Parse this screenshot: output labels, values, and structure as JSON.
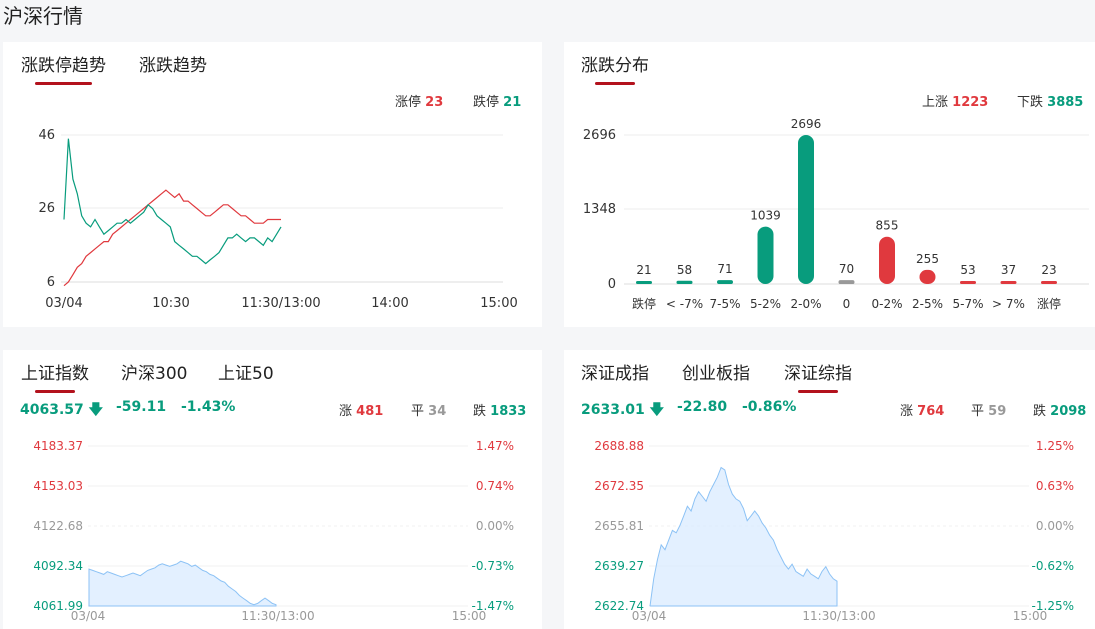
{
  "page_title": "沪深行情",
  "trend": {
    "tabs": [
      "涨跌停趋势",
      "涨跌趋势"
    ],
    "limit_up_label": "涨停",
    "limit_up": "23",
    "limit_down_label": "跌停",
    "limit_down": "21",
    "y_ticks": [
      "46",
      "26",
      "6"
    ],
    "x_ticks": [
      "03/04",
      "10:30",
      "11:30/13:00",
      "14:00",
      "15:00"
    ]
  },
  "dist": {
    "tab": "涨跌分布",
    "up_label": "上涨",
    "up": "1223",
    "down_label": "下跌",
    "down": "3885",
    "y_ticks": [
      "2696",
      "1348",
      "0"
    ]
  },
  "sh": {
    "tabs": [
      "上证指数",
      "沪深300",
      "上证50"
    ],
    "price": "4063.57",
    "arrow": "🡇",
    "change": "-59.11",
    "pct": "-1.43%",
    "up_label": "涨",
    "up": "481",
    "flat_label": "平",
    "flat": "34",
    "down_label": "跌",
    "down": "1833",
    "left_ticks": [
      "4183.37",
      "4153.03",
      "4122.68",
      "4092.34",
      "4061.99"
    ],
    "right_ticks": [
      "1.47%",
      "0.74%",
      "0.00%",
      "-0.73%",
      "-1.47%"
    ],
    "x_ticks": [
      "03/04",
      "11:30/13:00",
      "15:00"
    ]
  },
  "sz": {
    "tabs": [
      "深证成指",
      "创业板指",
      "深证综指"
    ],
    "price": "2633.01",
    "arrow": "🡇",
    "change": "-22.80",
    "pct": "-0.86%",
    "up_label": "涨",
    "up": "764",
    "flat_label": "平",
    "flat": "59",
    "down_label": "跌",
    "down": "2098",
    "left_ticks": [
      "2688.88",
      "2672.35",
      "2655.81",
      "2639.27",
      "2622.74"
    ],
    "right_ticks": [
      "1.25%",
      "0.63%",
      "0.00%",
      "-0.62%",
      "-1.25%"
    ],
    "x_ticks": [
      "03/04",
      "11:30/13:00",
      "15:00"
    ]
  },
  "chart_data": [
    {
      "type": "line",
      "series": [
        {
          "name": "涨停",
          "color": "#e0393e",
          "values": [
            5,
            6,
            8,
            10,
            11,
            13,
            14,
            15,
            16,
            17,
            17,
            19,
            20,
            21,
            22,
            23,
            24,
            25,
            26,
            27,
            28,
            29,
            30,
            31,
            30,
            29,
            30,
            28,
            28,
            27,
            26,
            25,
            24,
            24,
            25,
            26,
            27,
            27,
            26,
            25,
            24,
            24,
            23,
            22,
            22,
            22,
            23,
            23,
            23,
            23
          ]
        },
        {
          "name": "跌停",
          "color": "#089c7d",
          "values": [
            23,
            45,
            34,
            30,
            24,
            22,
            21,
            23,
            21,
            19,
            20,
            21,
            22,
            22,
            23,
            22,
            23,
            24,
            25,
            27,
            26,
            24,
            23,
            22,
            21,
            17,
            16,
            15,
            14,
            13,
            13,
            12,
            11,
            12,
            13,
            14,
            16,
            18,
            18,
            19,
            18,
            17,
            18,
            18,
            17,
            16,
            18,
            17,
            19,
            21
          ]
        }
      ],
      "ylim": [
        6,
        46
      ]
    },
    {
      "type": "bar",
      "categories": [
        "跌停",
        "< -7%",
        "7-5%",
        "5-2%",
        "2-0%",
        "0",
        "0-2%",
        "2-5%",
        "5-7%",
        "> 7%",
        "涨停"
      ],
      "values": [
        21,
        58,
        71,
        1039,
        2696,
        70,
        855,
        255,
        53,
        37,
        23
      ],
      "colors": [
        "#089c7d",
        "#089c7d",
        "#089c7d",
        "#089c7d",
        "#089c7d",
        "#999999",
        "#e0393e",
        "#e0393e",
        "#e0393e",
        "#e0393e",
        "#e0393e"
      ],
      "ylim": [
        0,
        2696
      ]
    },
    {
      "type": "area",
      "x": "03/04 - 11:30",
      "values": [
        4090,
        4089,
        4088,
        4087,
        4086,
        4088,
        4087,
        4086,
        4085,
        4084,
        4085,
        4086,
        4087,
        4086,
        4085,
        4087,
        4089,
        4090,
        4091,
        4093,
        4094,
        4093,
        4092,
        4093,
        4094,
        4096,
        4095,
        4094,
        4092,
        4093,
        4091,
        4089,
        4088,
        4086,
        4085,
        4083,
        4081,
        4080,
        4077,
        4075,
        4073,
        4070,
        4068,
        4066,
        4064,
        4063,
        4064,
        4066,
        4068,
        4066,
        4064,
        4063
      ],
      "ylim": [
        4061.99,
        4183.37
      ]
    },
    {
      "type": "area",
      "x": "03/04 - 11:30",
      "values": [
        2622.7,
        2634,
        2642,
        2648,
        2646,
        2650,
        2654,
        2653,
        2656,
        2660,
        2664,
        2662,
        2667,
        2670,
        2668,
        2666,
        2670,
        2673,
        2676,
        2680,
        2679,
        2673,
        2669,
        2667,
        2666,
        2663,
        2658,
        2660,
        2662,
        2660,
        2657,
        2655,
        2652,
        2650,
        2646,
        2643,
        2640,
        2638,
        2640,
        2637,
        2636,
        2635,
        2638,
        2636,
        2635,
        2634,
        2637,
        2639,
        2636,
        2634,
        2633
      ],
      "ylim": [
        2622.74,
        2688.88
      ]
    }
  ]
}
